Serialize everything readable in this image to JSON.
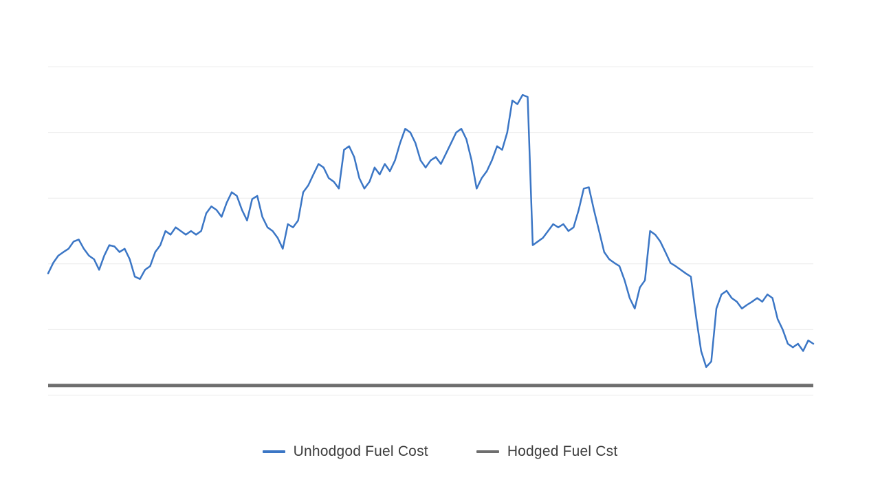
{
  "chart_data": {
    "type": "line",
    "title": "",
    "xlabel": "",
    "ylabel": "",
    "ylim": [
      0,
      100
    ],
    "grid": "horizontal-faint",
    "gridlines": [
      0,
      20,
      40,
      60,
      80,
      100
    ],
    "legend_position": "bottom",
    "series": [
      {
        "name": "Unhodgod Fuel Cost",
        "color": "#3b76c5",
        "values": [
          37.1,
          40.3,
          42.5,
          43.6,
          44.6,
          46.8,
          47.4,
          44.6,
          42.5,
          41.4,
          38.2,
          42.5,
          45.7,
          45.3,
          43.6,
          44.6,
          41.4,
          36.1,
          35.4,
          38.2,
          39.3,
          43.6,
          45.7,
          50.0,
          48.9,
          51.1,
          50.0,
          48.9,
          50.0,
          48.9,
          50.0,
          55.4,
          57.5,
          56.4,
          54.3,
          58.6,
          61.8,
          60.7,
          56.4,
          53.2,
          59.7,
          60.7,
          54.3,
          51.1,
          50.0,
          47.9,
          44.6,
          52.1,
          51.1,
          53.2,
          61.8,
          63.9,
          67.2,
          70.4,
          69.3,
          66.1,
          65.0,
          62.9,
          74.7,
          75.8,
          72.5,
          66.1,
          62.9,
          65.0,
          69.3,
          67.2,
          70.4,
          68.2,
          71.5,
          76.8,
          81.1,
          80.0,
          76.8,
          71.5,
          69.3,
          71.5,
          72.5,
          70.4,
          73.6,
          76.8,
          80.0,
          81.1,
          77.9,
          71.5,
          62.9,
          66.1,
          68.2,
          71.5,
          75.8,
          74.7,
          80.0,
          89.7,
          88.6,
          91.4,
          90.8,
          45.7,
          46.8,
          47.9,
          50.0,
          52.1,
          51.1,
          52.1,
          50.0,
          51.1,
          56.4,
          62.9,
          63.3,
          56.4,
          50.0,
          43.6,
          41.4,
          40.3,
          39.3,
          35.0,
          29.6,
          26.4,
          32.8,
          35.0,
          50.0,
          48.9,
          46.8,
          43.6,
          40.3,
          39.3,
          38.2,
          37.1,
          36.1,
          24.2,
          13.5,
          8.6,
          10.3,
          26.4,
          30.7,
          31.8,
          29.6,
          28.5,
          26.4,
          27.5,
          28.5,
          29.6,
          28.5,
          30.7,
          29.6,
          23.2,
          20.0,
          15.7,
          14.6,
          15.7,
          13.5,
          16.7,
          15.7
        ]
      },
      {
        "name": "Hodged Fuel Cst",
        "color": "#6e6e6e",
        "constant": 3.0
      }
    ]
  },
  "legend": {
    "items": [
      {
        "label": "Unhodgod Fuel Cost"
      },
      {
        "label": "Hodged Fuel Cst"
      }
    ]
  }
}
